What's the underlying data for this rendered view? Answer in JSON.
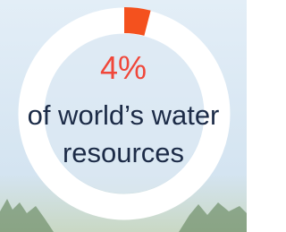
{
  "chart_data": {
    "type": "donut",
    "values": [
      4
    ],
    "value_labels": [
      "4%"
    ],
    "color": "#f4511e",
    "subtitle": "of world’s water resources"
  }
}
